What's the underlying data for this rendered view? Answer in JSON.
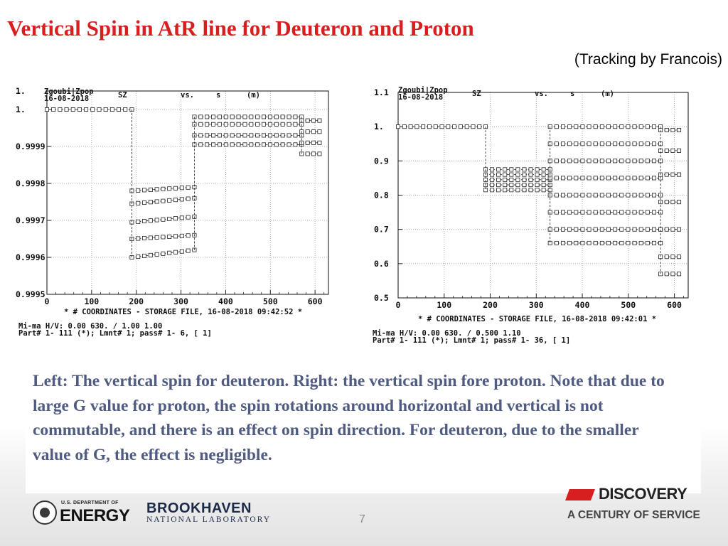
{
  "slide": {
    "title": "Vertical Spin in AtR line for Deuteron and Proton",
    "subtitle": "(Tracking by Francois)",
    "caption": "Left: The vertical spin for deuteron. Right: the vertical spin fore proton. Note that due to large G value for proton, the spin rotations around horizontal and vertical is not commutable, and there is an effect on spin direction. For deuteron, due to the smaller value of G, the effect is negligible.",
    "page_number": "7",
    "title_color": "#d81f1f",
    "caption_color": "#4f5b80"
  },
  "logos": {
    "energy_small": "U.S. DEPARTMENT OF",
    "energy_big": "ENERGY",
    "bnl_big": "BROOKHAVEN",
    "bnl_small": "NATIONAL LABORATORY",
    "discovery_word": "DISCOVERY",
    "discovery_tag": "A CENTURY OF SERVICE"
  },
  "chart_data": [
    {
      "type": "scatter",
      "id": "deuteron",
      "header_left_1": "Zgoubi|Zpop",
      "header_left_2": "16-08-2018",
      "header_y": "SZ",
      "header_vs": "vs.",
      "header_x": "s",
      "header_unit": "(m)",
      "yticks": [
        "1.",
        "1.",
        "0.9999",
        "0.9998",
        "0.9997",
        "0.9996",
        "0.9995"
      ],
      "yvals": [
        1.00005,
        1.0,
        0.9999,
        0.9998,
        0.9997,
        0.9996,
        0.9995
      ],
      "ylim": [
        0.9995,
        1.00005
      ],
      "xticks": [
        "0",
        "100",
        "200",
        "300",
        "400",
        "500",
        "600"
      ],
      "xlim": [
        0,
        630
      ],
      "footer_1": "* # COORDINATES  - STORAGE FILE, 16-08-2018 09:42:52 *",
      "footer_2": "Mi-ma H/V:    0.00       630.    /   1.00       1.00",
      "footer_3": "Part#  1-    111 (*); Lmnt#      1; pass#        1-      6, [    1]",
      "segments": [
        {
          "x": [
            0,
            190
          ],
          "y": [
            1.0,
            1.0
          ]
        },
        {
          "x": [
            190,
            330
          ],
          "y": [
            0.99978,
            0.99979
          ]
        },
        {
          "x": [
            190,
            330
          ],
          "y": [
            0.999745,
            0.99976
          ]
        },
        {
          "x": [
            190,
            330
          ],
          "y": [
            0.999695,
            0.99971
          ]
        },
        {
          "x": [
            190,
            330
          ],
          "y": [
            0.99965,
            0.99966
          ]
        },
        {
          "x": [
            190,
            330
          ],
          "y": [
            0.9996,
            0.99962
          ]
        },
        {
          "x": [
            330,
            570
          ],
          "y": [
            0.99998,
            0.99998
          ]
        },
        {
          "x": [
            330,
            570
          ],
          "y": [
            0.99996,
            0.99996
          ]
        },
        {
          "x": [
            330,
            570
          ],
          "y": [
            0.99993,
            0.99993
          ]
        },
        {
          "x": [
            330,
            570
          ],
          "y": [
            0.999905,
            0.999905
          ]
        },
        {
          "x": [
            570,
            610
          ],
          "y": [
            0.99997,
            0.99997
          ]
        },
        {
          "x": [
            570,
            610
          ],
          "y": [
            0.99994,
            0.99994
          ]
        },
        {
          "x": [
            570,
            610
          ],
          "y": [
            0.99991,
            0.99991
          ]
        },
        {
          "x": [
            570,
            610
          ],
          "y": [
            0.99988,
            0.99988
          ]
        }
      ]
    },
    {
      "type": "scatter",
      "id": "proton",
      "header_left_1": "Zgoubi|Zpop",
      "header_left_2": "16-08-2018",
      "header_y": "SZ",
      "header_vs": "vs.",
      "header_x": "s",
      "header_unit": "(m)",
      "yticks": [
        "1.1",
        "1.",
        "0.9",
        "0.8",
        "0.7",
        "0.6",
        "0.5"
      ],
      "yvals": [
        1.1,
        1.0,
        0.9,
        0.8,
        0.7,
        0.6,
        0.5
      ],
      "ylim": [
        0.5,
        1.1
      ],
      "xticks": [
        "0",
        "100",
        "200",
        "300",
        "400",
        "500",
        "600"
      ],
      "xlim": [
        0,
        630
      ],
      "footer_1": "* # COORDINATES  - STORAGE FILE, 16-08-2018 09:42:01 *",
      "footer_2": "Mi-ma H/V:    0.00       630.    /  0.500       1.10",
      "footer_3": "Part#  1-    111 (*); Lmnt#      1; pass#        1-     36, [    1]",
      "segments": [
        {
          "x": [
            0,
            190
          ],
          "y": [
            1.0,
            1.0
          ]
        },
        {
          "x": [
            190,
            330
          ],
          "y": [
            0.875,
            0.875
          ]
        },
        {
          "x": [
            190,
            330
          ],
          "y": [
            0.86,
            0.86
          ]
        },
        {
          "x": [
            190,
            330
          ],
          "y": [
            0.845,
            0.845
          ]
        },
        {
          "x": [
            190,
            330
          ],
          "y": [
            0.83,
            0.83
          ]
        },
        {
          "x": [
            190,
            330
          ],
          "y": [
            0.815,
            0.815
          ]
        },
        {
          "x": [
            330,
            570
          ],
          "y": [
            1.0,
            1.0
          ]
        },
        {
          "x": [
            330,
            570
          ],
          "y": [
            0.95,
            0.95
          ]
        },
        {
          "x": [
            330,
            570
          ],
          "y": [
            0.9,
            0.9
          ]
        },
        {
          "x": [
            330,
            570
          ],
          "y": [
            0.85,
            0.85
          ]
        },
        {
          "x": [
            330,
            570
          ],
          "y": [
            0.8,
            0.8
          ]
        },
        {
          "x": [
            330,
            570
          ],
          "y": [
            0.75,
            0.75
          ]
        },
        {
          "x": [
            330,
            570
          ],
          "y": [
            0.7,
            0.7
          ]
        },
        {
          "x": [
            330,
            570
          ],
          "y": [
            0.66,
            0.66
          ]
        },
        {
          "x": [
            570,
            610
          ],
          "y": [
            0.99,
            0.99
          ]
        },
        {
          "x": [
            570,
            610
          ],
          "y": [
            0.93,
            0.93
          ]
        },
        {
          "x": [
            570,
            610
          ],
          "y": [
            0.86,
            0.86
          ]
        },
        {
          "x": [
            570,
            610
          ],
          "y": [
            0.78,
            0.78
          ]
        },
        {
          "x": [
            570,
            610
          ],
          "y": [
            0.7,
            0.7
          ]
        },
        {
          "x": [
            570,
            610
          ],
          "y": [
            0.62,
            0.62
          ]
        },
        {
          "x": [
            570,
            610
          ],
          "y": [
            0.57,
            0.57
          ]
        }
      ]
    }
  ]
}
